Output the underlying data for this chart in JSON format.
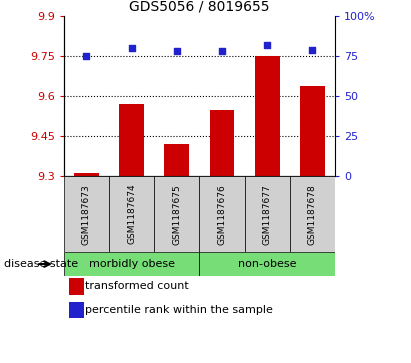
{
  "title": "GDS5056 / 8019655",
  "samples": [
    "GSM1187673",
    "GSM1187674",
    "GSM1187675",
    "GSM1187676",
    "GSM1187677",
    "GSM1187678"
  ],
  "bar_values": [
    9.31,
    9.57,
    9.42,
    9.55,
    9.75,
    9.64
  ],
  "percentile_values": [
    75,
    80,
    78,
    78,
    82,
    79
  ],
  "ylim_left": [
    9.3,
    9.9
  ],
  "ylim_right": [
    0,
    100
  ],
  "yticks_left": [
    9.3,
    9.45,
    9.6,
    9.75,
    9.9
  ],
  "yticks_right": [
    0,
    25,
    50,
    75,
    100
  ],
  "grid_yticks": [
    9.45,
    9.6,
    9.75
  ],
  "bar_color": "#cc0000",
  "percentile_color": "#2222cc",
  "bar_bottom": 9.3,
  "groups": [
    {
      "label": "morbidly obese",
      "indices": [
        0,
        1,
        2
      ]
    },
    {
      "label": "non-obese",
      "indices": [
        3,
        4,
        5
      ]
    }
  ],
  "disease_state_label": "disease state",
  "legend_bar_label": "transformed count",
  "legend_percentile_label": "percentile rank within the sample",
  "title_fontsize": 10,
  "tick_fontsize": 8,
  "sample_fontsize": 6.5,
  "group_fontsize": 8,
  "legend_fontsize": 8,
  "bg_color_plot": "#d0d0d0",
  "bg_color_group": "#77dd77"
}
